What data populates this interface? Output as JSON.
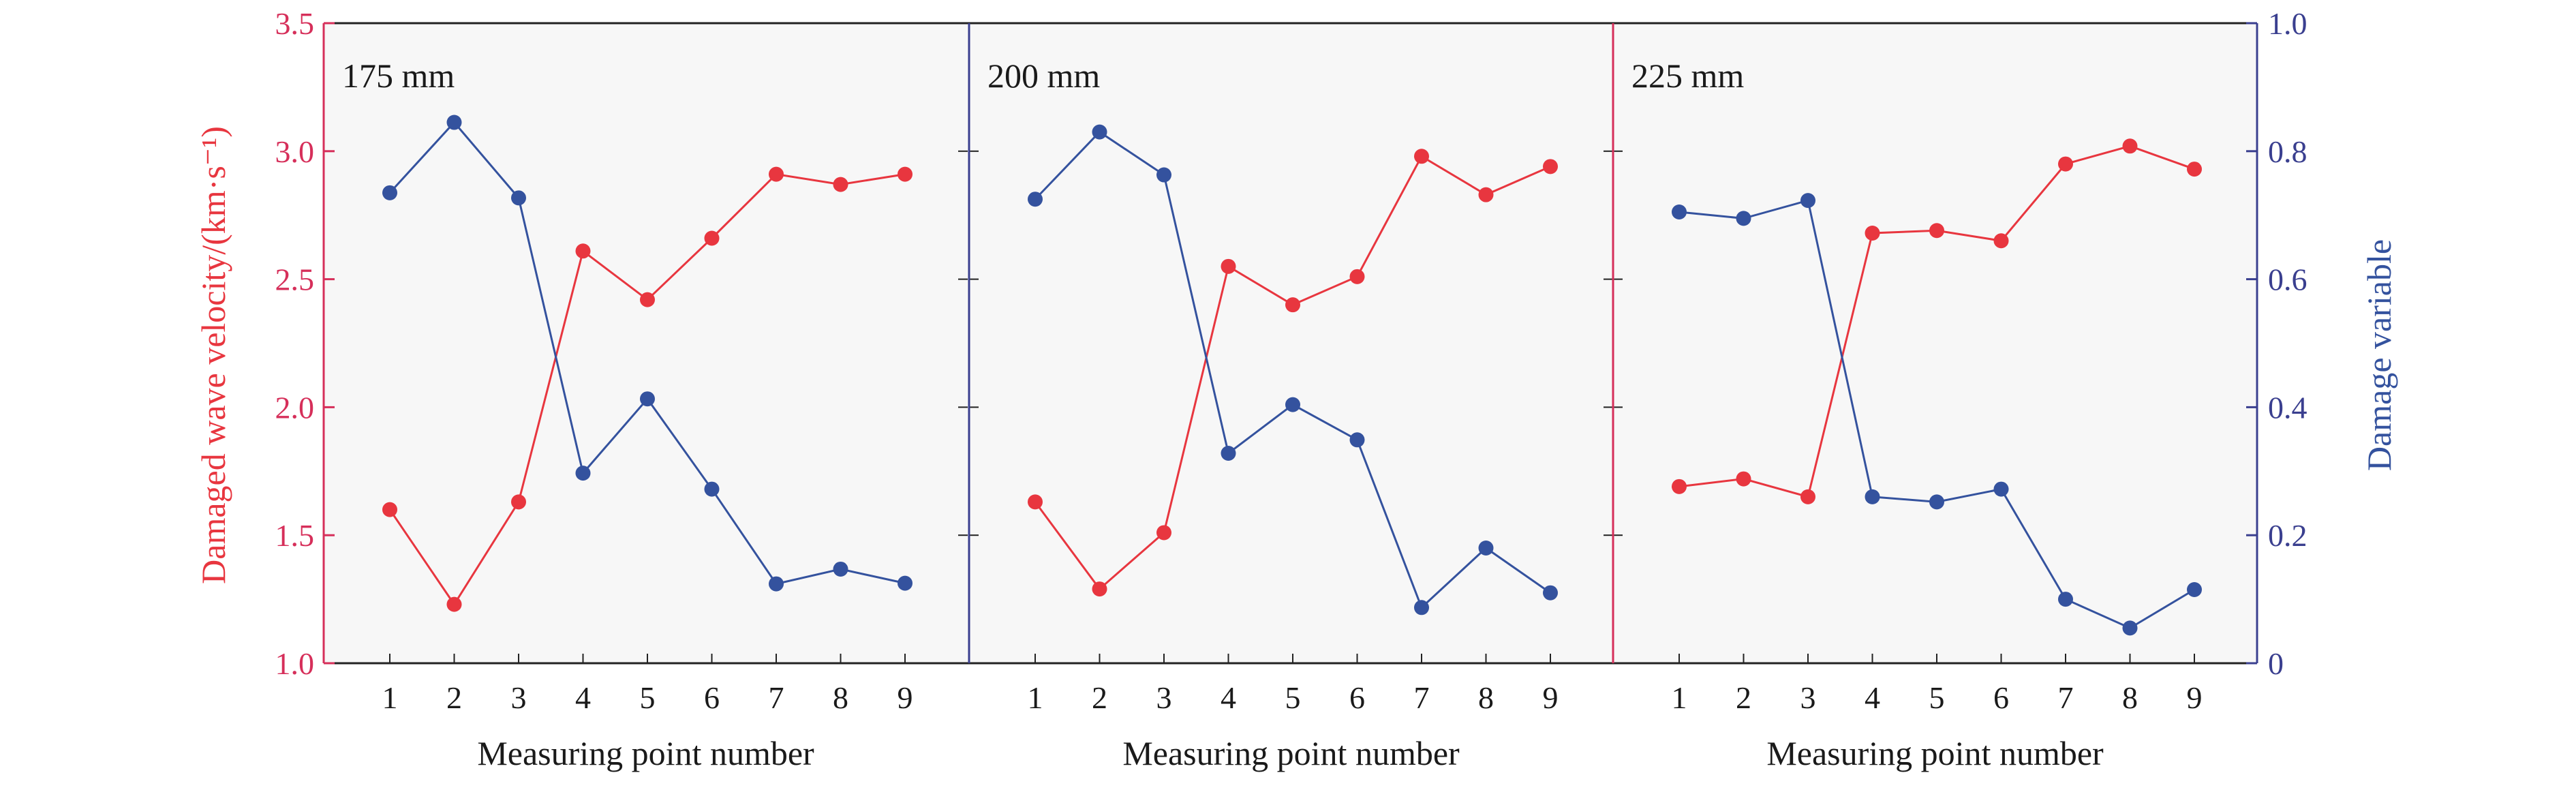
{
  "chart_data": {
    "type": "line",
    "x_label": "Measuring point number",
    "y_left_label": "Damaged wave velocity/(km·s⁻¹)",
    "y_right_label": "Damage variable",
    "x_ticks": [
      "1",
      "2",
      "3",
      "4",
      "5",
      "6",
      "7",
      "8",
      "9"
    ],
    "y_left_range": [
      1.0,
      3.5
    ],
    "y_left_ticks": [
      "1.0",
      "1.5",
      "2.0",
      "2.5",
      "3.0",
      "3.5"
    ],
    "y_right_range": [
      0,
      1.0
    ],
    "y_right_ticks": [
      "0",
      "0.2",
      "0.4",
      "0.6",
      "0.8",
      "1.0"
    ],
    "grid": false,
    "colors": {
      "velocity": "#e8363f",
      "damage": "#34529e",
      "left_axis": "#d62f5a",
      "right_axis": "#3a3f8f",
      "panel_background": "#f7f7f7"
    },
    "panels": [
      {
        "label": "175 mm",
        "x": [
          1,
          2,
          3,
          4,
          5,
          6,
          7,
          8,
          9
        ],
        "velocity": [
          1.6,
          1.23,
          1.63,
          2.61,
          2.42,
          2.66,
          2.91,
          2.87,
          2.91
        ],
        "damage": [
          0.735,
          0.845,
          0.727,
          0.297,
          0.413,
          0.272,
          0.124,
          0.147,
          0.125
        ]
      },
      {
        "label": "200 mm",
        "x": [
          1,
          2,
          3,
          4,
          5,
          6,
          7,
          8,
          9
        ],
        "velocity": [
          1.63,
          1.29,
          1.51,
          2.55,
          2.4,
          2.51,
          2.98,
          2.83,
          2.94
        ],
        "damage": [
          0.725,
          0.83,
          0.763,
          0.328,
          0.404,
          0.349,
          0.087,
          0.18,
          0.11
        ]
      },
      {
        "label": "225 mm",
        "x": [
          1,
          2,
          3,
          4,
          5,
          6,
          7,
          8,
          9
        ],
        "velocity": [
          1.69,
          1.72,
          1.65,
          2.68,
          2.69,
          2.65,
          2.95,
          3.02,
          2.93
        ],
        "damage": [
          0.705,
          0.695,
          0.723,
          0.26,
          0.252,
          0.272,
          0.1,
          0.055,
          0.115
        ]
      }
    ]
  }
}
